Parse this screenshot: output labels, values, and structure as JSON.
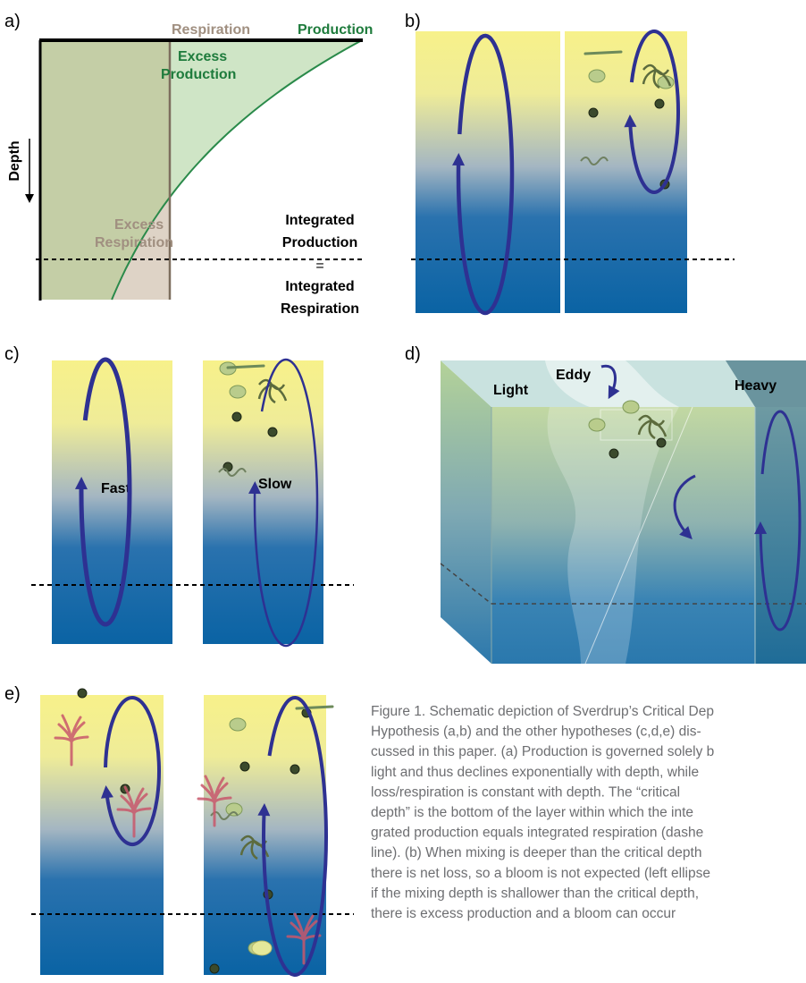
{
  "panel_a": {
    "label": "a)",
    "respiration_label": "Respiration",
    "production_label": "Production",
    "excess_production": [
      "Excess",
      "Production"
    ],
    "depth_label": "Depth",
    "excess_respiration": [
      "Excess",
      "Respiration"
    ],
    "integrated": [
      "Integrated",
      "Production",
      "=",
      "Integrated",
      "Respiration"
    ]
  },
  "panel_b": {
    "label": "b)"
  },
  "panel_c": {
    "label": "c)",
    "fast": "Fast",
    "slow": "Slow"
  },
  "panel_d": {
    "label": "d)",
    "light": "Light",
    "eddy": "Eddy",
    "heavy": "Heavy"
  },
  "panel_e": {
    "label": "e)"
  },
  "caption": {
    "lines": [
      "Figure 1. Schematic depiction of Sverdrup’s Critical Dep",
      "Hypothesis (a,b) and the other hypotheses (c,d,e) dis-",
      "cussed in this paper. (a) Production is governed solely b",
      "light and thus declines exponentially with depth, while",
      "loss/respiration is constant with depth. The “critical",
      "depth” is the bottom of the layer within which the inte",
      "grated production equals integrated respiration (dashe",
      "line). (b) When mixing is deeper than the critical depth",
      "there is net loss, so a bloom is not expected (left ellipse",
      "if the mixing depth is shallower than the critical depth,",
      "there is excess production and a bloom can occur"
    ]
  }
}
